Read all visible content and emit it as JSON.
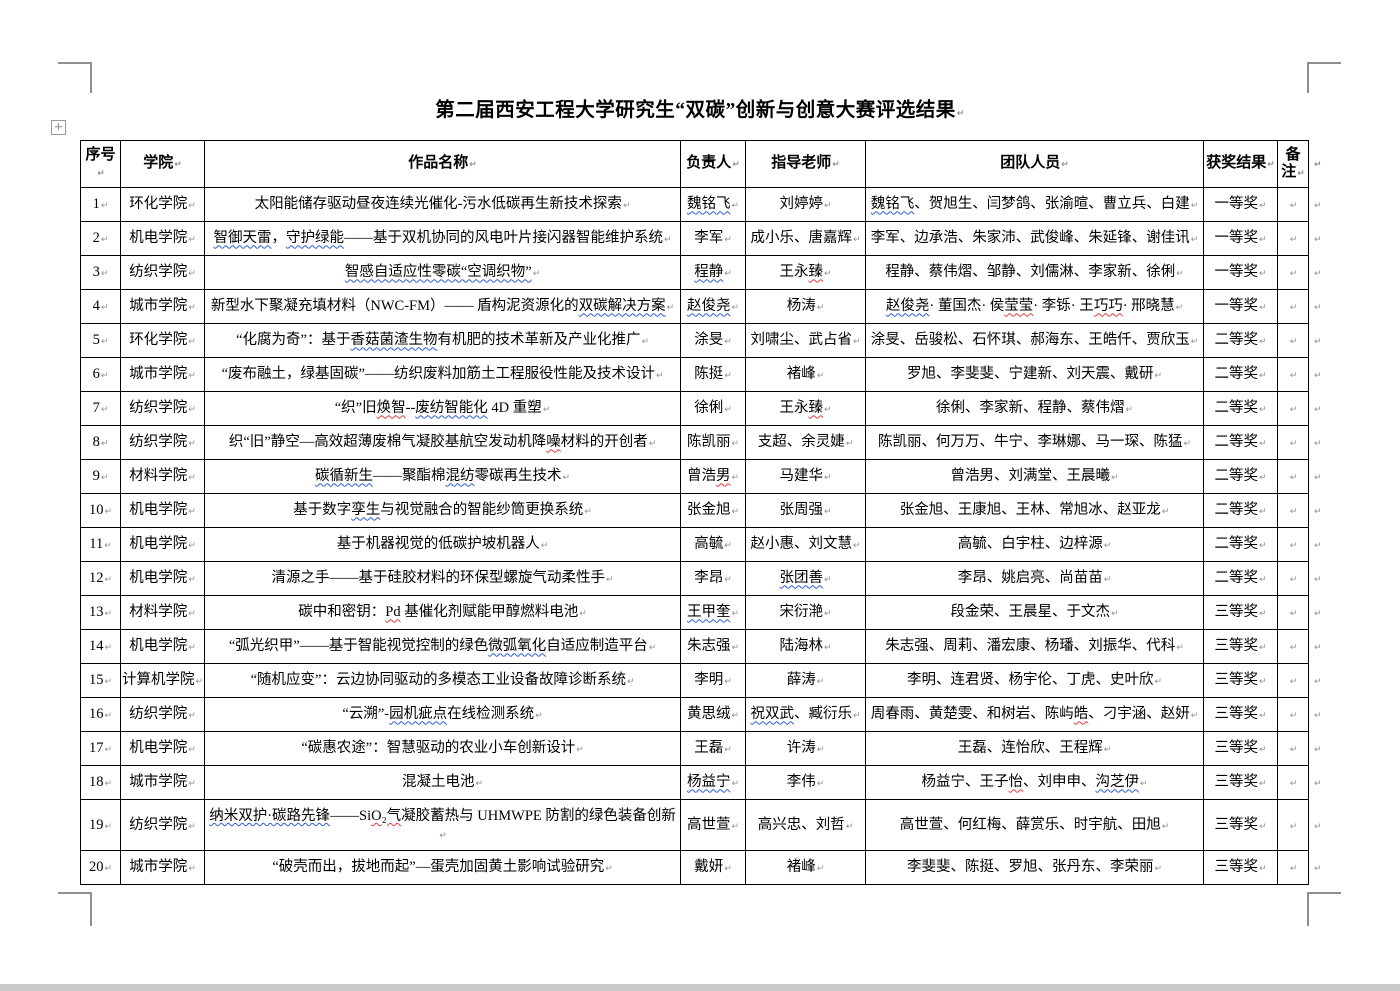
{
  "page": {
    "title": "第二届西安工程大学研究生“双碳”创新与创意大赛评选结果",
    "cell_mark": "↵"
  },
  "colors": {
    "squiggle_blue": "#2f5bd6",
    "squiggle_red": "#e23c3c",
    "grid": "#000000",
    "page_edge_gray": "#c9c9c9"
  },
  "table": {
    "headers": [
      "序号",
      "学院",
      "作品名称",
      "负责人",
      "指导老师",
      "团队人员",
      "获奖结果",
      "备注"
    ],
    "rows": [
      {
        "no": "1",
        "college": "环化学院",
        "title": [
          {
            "t": "太阳能储存驱动昼夜连续光催化-污水低碳再生新技术探索"
          }
        ],
        "leader": [
          {
            "t": "魏铭飞",
            "u": "b"
          }
        ],
        "advisor": [
          {
            "t": "刘婷婷"
          }
        ],
        "team": [
          {
            "t": "魏铭飞",
            "u": "b"
          },
          {
            "t": "、贺旭生、闫梦鸽、张渝暄、曹立兵、白建"
          }
        ],
        "award": "一等奖"
      },
      {
        "no": "2",
        "college": "机电学院",
        "title": [
          {
            "t": "智御天雷",
            "u": "b"
          },
          {
            "t": "，"
          },
          {
            "t": "守护绿能",
            "u": "b"
          },
          {
            "t": "——基于双机协同的风电叶片接闪器智能维护系统"
          }
        ],
        "leader": [
          {
            "t": "李军"
          }
        ],
        "advisor": [
          {
            "t": "成小乐、唐嘉辉"
          }
        ],
        "team": [
          {
            "t": "李军、边承浩、朱家沛、武俊峰、朱延锋、谢佳讯"
          }
        ],
        "award": "一等奖"
      },
      {
        "no": "3",
        "college": "纺织学院",
        "title": [
          {
            "t": "智感自适应性零碳“空调织物”",
            "u": "b"
          }
        ],
        "leader": [
          {
            "t": "程静",
            "u": "b"
          }
        ],
        "advisor": [
          {
            "t": "王永"
          },
          {
            "t": "臻",
            "u": "r"
          }
        ],
        "team": [
          {
            "t": "程静、蔡伟熠、邹静、刘儒淋、李家新、徐俐"
          }
        ],
        "award": "一等奖"
      },
      {
        "no": "4",
        "college": "城市学院",
        "title": [
          {
            "t": "新型水下聚凝充填材料（NWC-FM）—— 盾构泥资源化的"
          },
          {
            "t": "双碳解决方案",
            "u": "b"
          }
        ],
        "leader": [
          {
            "t": "赵俊尧",
            "u": "b"
          }
        ],
        "advisor": [
          {
            "t": "杨涛"
          }
        ],
        "team": [
          {
            "t": "赵俊尧",
            "u": "b"
          },
          {
            "t": "· 董国杰· 侯"
          },
          {
            "t": "莹莹",
            "u": "r"
          },
          {
            "t": "· 李铄· 王"
          },
          {
            "t": "巧巧",
            "u": "r"
          },
          {
            "t": "· 邢晓慧"
          }
        ],
        "award": "一等奖"
      },
      {
        "no": "5",
        "college": "环化学院",
        "title": [
          {
            "t": "“化腐为奇”：基于"
          },
          {
            "t": "香菇菌渣生物",
            "u": "b"
          },
          {
            "t": "有机肥的技术革新及产业化推广"
          }
        ],
        "leader": [
          {
            "t": "涂旻"
          }
        ],
        "advisor": [
          {
            "t": "刘啸尘、武占省"
          }
        ],
        "team": [
          {
            "t": "涂旻、岳骏松、石怀琪、郝海东、王皓仟、贾欣玉"
          }
        ],
        "award": "二等奖"
      },
      {
        "no": "6",
        "college": "城市学院",
        "title": [
          {
            "t": "“废布融土，绿基固碳”——纺织废料加筋土工程服役性能及技术设计"
          }
        ],
        "leader": [
          {
            "t": "陈挺"
          }
        ],
        "advisor": [
          {
            "t": "褚峰"
          }
        ],
        "team": [
          {
            "t": "罗旭、李斐斐、宁建新、刘天震、戴研"
          }
        ],
        "award": "二等奖"
      },
      {
        "no": "7",
        "college": "纺织学院",
        "title": [
          {
            "t": "“织”旧"
          },
          {
            "t": "焕智",
            "u": "r"
          },
          {
            "t": "--"
          },
          {
            "t": "废纺智能化",
            "u": "b"
          },
          {
            "t": " 4D 重塑"
          }
        ],
        "leader": [
          {
            "t": "徐俐"
          }
        ],
        "advisor": [
          {
            "t": "王永"
          },
          {
            "t": "臻",
            "u": "r"
          }
        ],
        "team": [
          {
            "t": "徐俐、李家新、程静、蔡伟熠"
          }
        ],
        "award": "二等奖"
      },
      {
        "no": "8",
        "college": "纺织学院",
        "title": [
          {
            "t": "织“旧”静空—高效超薄废棉气凝胶基航空发动机降"
          },
          {
            "t": "噪",
            "u": "r"
          },
          {
            "t": "材料的开创者"
          }
        ],
        "leader": [
          {
            "t": "陈凯丽"
          }
        ],
        "advisor": [
          {
            "t": "支超、余灵婕"
          }
        ],
        "team": [
          {
            "t": "陈凯丽、何万万、牛宁、李琳娜、马一琛、陈猛"
          }
        ],
        "award": "二等奖"
      },
      {
        "no": "9",
        "college": "材料学院",
        "title": [
          {
            "t": "碳循新生",
            "u": "b"
          },
          {
            "t": "——聚酯棉"
          },
          {
            "t": "混纺",
            "u": "b"
          },
          {
            "t": "零碳再生技术"
          }
        ],
        "leader": [
          {
            "t": "曾浩"
          },
          {
            "t": "男",
            "u": "r"
          }
        ],
        "advisor": [
          {
            "t": "马建华"
          }
        ],
        "team": [
          {
            "t": "曾浩男、刘满堂、王晨曦"
          }
        ],
        "award": "二等奖"
      },
      {
        "no": "10",
        "college": "机电学院",
        "title": [
          {
            "t": "基于数字"
          },
          {
            "t": "孪生",
            "u": "b"
          },
          {
            "t": "与视觉融合的智能纱筒更换系统"
          }
        ],
        "leader": [
          {
            "t": "张金旭"
          }
        ],
        "advisor": [
          {
            "t": "张周强"
          }
        ],
        "team": [
          {
            "t": "张金旭、王康旭、王林、常旭冰、赵亚龙"
          }
        ],
        "award": "二等奖"
      },
      {
        "no": "11",
        "college": "机电学院",
        "title": [
          {
            "t": "基于机器视觉的低碳护坡机器人"
          }
        ],
        "leader": [
          {
            "t": "高毓"
          }
        ],
        "advisor": [
          {
            "t": "赵小惠、刘文慧"
          }
        ],
        "team": [
          {
            "t": "高毓、白宇柱、边梓源"
          }
        ],
        "award": "二等奖"
      },
      {
        "no": "12",
        "college": "机电学院",
        "title": [
          {
            "t": "清源之手——基于硅胶材料的环保型螺旋气动柔性手"
          }
        ],
        "leader": [
          {
            "t": "李昂"
          }
        ],
        "advisor": [
          {
            "t": "张团善",
            "u": "b"
          }
        ],
        "team": [
          {
            "t": "李昂、姚启亮、尚苗苗"
          }
        ],
        "award": "二等奖"
      },
      {
        "no": "13",
        "college": "材料学院",
        "title": [
          {
            "t": "碳中和密钥："
          },
          {
            "t": "Pd",
            "u": "r"
          },
          {
            "t": " 基催化剂赋能甲醇燃料电池"
          }
        ],
        "leader": [
          {
            "t": "王甲奎",
            "u": "b"
          }
        ],
        "advisor": [
          {
            "t": "宋衍滟"
          }
        ],
        "team": [
          {
            "t": "段金荣、王晨星、于文杰"
          }
        ],
        "award": "三等奖"
      },
      {
        "no": "14",
        "college": "机电学院",
        "title": [
          {
            "t": "“弧光织甲”——基于智能视觉控制的绿色"
          },
          {
            "t": "微弧氧化",
            "u": "b"
          },
          {
            "t": "自适应制造平台"
          }
        ],
        "leader": [
          {
            "t": "朱志强"
          }
        ],
        "advisor": [
          {
            "t": "陆海林"
          }
        ],
        "team": [
          {
            "t": "朱志强、周莉、潘宏康、杨璠、刘振华、代科"
          }
        ],
        "award": "三等奖"
      },
      {
        "no": "15",
        "college": "计算机学院",
        "title": [
          {
            "t": "“随机应变”：云边协同驱动的多模态工业设备故障诊断系统"
          }
        ],
        "leader": [
          {
            "t": "李明"
          }
        ],
        "advisor": [
          {
            "t": "薛涛"
          }
        ],
        "team": [
          {
            "t": "李明、连君贤、杨宇伦、丁虎、史叶欣"
          }
        ],
        "award": "三等奖"
      },
      {
        "no": "16",
        "college": "纺织学院",
        "title": [
          {
            "t": "“云溯”-"
          },
          {
            "t": "园机疵点",
            "u": "b"
          },
          {
            "t": "在线检测系统"
          }
        ],
        "leader": [
          {
            "t": "黄思绒"
          }
        ],
        "advisor": [
          {
            "t": "祝双武",
            "u": "b"
          },
          {
            "t": "、臧衍乐"
          }
        ],
        "team": [
          {
            "t": "周春雨、黄楚雯、和树岩、陈屿"
          },
          {
            "t": "皓",
            "u": "r"
          },
          {
            "t": "、刁宇涵、赵妍"
          }
        ],
        "award": "三等奖"
      },
      {
        "no": "17",
        "college": "机电学院",
        "title": [
          {
            "t": "“碳惠农途”：智慧驱动的农业小车创新设计"
          }
        ],
        "leader": [
          {
            "t": "王磊"
          }
        ],
        "advisor": [
          {
            "t": "许涛"
          }
        ],
        "team": [
          {
            "t": "王磊、连怡欣、王程辉"
          }
        ],
        "award": "三等奖"
      },
      {
        "no": "18",
        "college": "城市学院",
        "title": [
          {
            "t": "混凝土电池"
          }
        ],
        "leader": [
          {
            "t": "杨益宁",
            "u": "b"
          }
        ],
        "advisor": [
          {
            "t": "李伟"
          }
        ],
        "team": [
          {
            "t": "杨益宁、王子"
          },
          {
            "t": "怡",
            "u": "r"
          },
          {
            "t": "、刘申申、"
          },
          {
            "t": "沟芝伊",
            "u": "b"
          }
        ],
        "award": "三等奖"
      },
      {
        "no": "19",
        "college": "纺织学院",
        "tall": true,
        "title": [
          {
            "t": "纳米双护·碳路先锋",
            "u": "b"
          },
          {
            "t": "——Si"
          },
          {
            "t": "O₂气",
            "u": "r"
          },
          {
            "t": "凝胶蓄热与 UHMWPE 防割的绿色装备创新"
          }
        ],
        "leader": [
          {
            "t": "高世萱"
          }
        ],
        "advisor": [
          {
            "t": "高兴忠、刘哲"
          }
        ],
        "team": [
          {
            "t": "高世萱、何红梅、薛赏乐、时宇航、田旭"
          }
        ],
        "award": "三等奖"
      },
      {
        "no": "20",
        "college": "城市学院",
        "title": [
          {
            "t": "“破壳而出，拔地而起”—蛋壳加固黄土影响试验研究"
          }
        ],
        "leader": [
          {
            "t": "戴妍"
          }
        ],
        "advisor": [
          {
            "t": "褚峰"
          }
        ],
        "team": [
          {
            "t": "李斐斐、陈挺、罗旭、张丹东、李荣丽"
          }
        ],
        "award": "三等奖"
      }
    ]
  }
}
